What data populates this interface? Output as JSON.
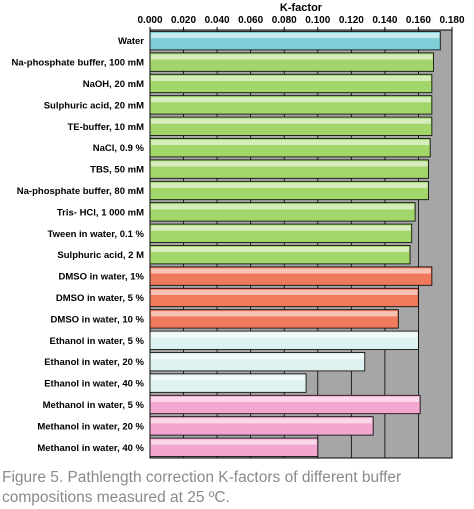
{
  "caption": "Figure 5. Pathlength correction K-factors of different buffer compositions measured at 25 ºC.",
  "chart_data": {
    "type": "bar",
    "orientation": "horizontal",
    "xlabel": "K-factor",
    "xlim": [
      0,
      0.18
    ],
    "xticks": [
      "0.000",
      "0.020",
      "0.040",
      "0.060",
      "0.080",
      "0.100",
      "0.120",
      "0.140",
      "0.160",
      "0.180"
    ],
    "grid": true,
    "plot_background": "#a6a6a6",
    "categories": [
      "Water",
      "Na-phosphate buffer, 100 mM",
      "NaOH, 20 mM",
      "Sulphuric acid, 20 mM",
      "TE-buffer, 10 mM",
      "NaCl, 0.9 %",
      "TBS, 50 mM",
      "Na-phosphate buffer, 80 mM",
      "Tris- HCl, 1 000 mM",
      "Tween in water, 0.1 %",
      "Sulphuric acid, 2 M",
      "DMSO in water, 1%",
      "DMSO in water, 5 %",
      "DMSO in water, 10 %",
      "Ethanol in water, 5 %",
      "Ethanol in water, 20 %",
      "Ethanol in water, 40 %",
      "Methanol in water, 5 %",
      "Methanol in water, 20 %",
      "Methanol in water, 40 %"
    ],
    "values": [
      0.173,
      0.169,
      0.168,
      0.168,
      0.168,
      0.167,
      0.166,
      0.166,
      0.158,
      0.156,
      0.155,
      0.168,
      0.16,
      0.148,
      0.16,
      0.128,
      0.093,
      0.161,
      0.133,
      0.1
    ],
    "bar_colors": [
      "#7ecfd8",
      "#a2d66a",
      "#a2d66a",
      "#a2d66a",
      "#a2d66a",
      "#a2d66a",
      "#a2d66a",
      "#a2d66a",
      "#a2d66a",
      "#a2d66a",
      "#a2d66a",
      "#f07a5c",
      "#f07a5c",
      "#f07a5c",
      "#dff2f2",
      "#dff2f2",
      "#dff2f2",
      "#f3a6cf",
      "#f3a6cf",
      "#f3a6cf"
    ]
  }
}
